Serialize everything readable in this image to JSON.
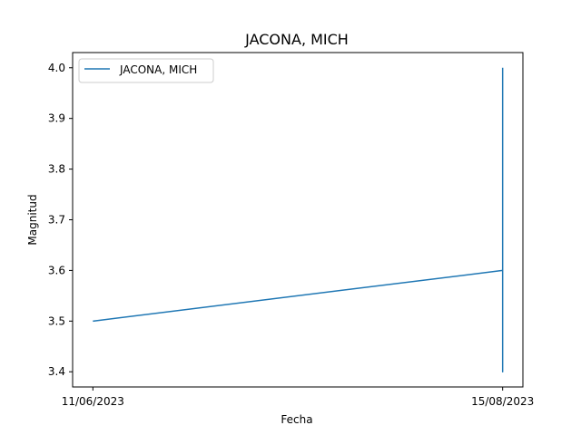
{
  "chart_data": {
    "type": "line",
    "title": "JACONA, MICH",
    "xlabel": "Fecha",
    "ylabel": "Magnitud",
    "x_ticks": [
      "11/06/2023",
      "15/08/2023"
    ],
    "ylim": [
      3.37,
      4.03
    ],
    "y_ticks": [
      "3.4",
      "3.5",
      "3.6",
      "3.7",
      "3.8",
      "3.9",
      "4.0"
    ],
    "grid": false,
    "legend_position": "top-left",
    "series": [
      {
        "name": "JACONA, MICH",
        "color": "#1f77b4",
        "points": [
          {
            "x": "11/06/2023",
            "y": 3.5
          },
          {
            "x": "15/08/2023",
            "y": 3.6
          },
          {
            "x": "15/08/2023",
            "y": 3.4
          },
          {
            "x": "15/08/2023",
            "y": 3.6
          },
          {
            "x": "15/08/2023",
            "y": 3.4
          },
          {
            "x": "15/08/2023",
            "y": 4.0
          }
        ]
      }
    ]
  }
}
